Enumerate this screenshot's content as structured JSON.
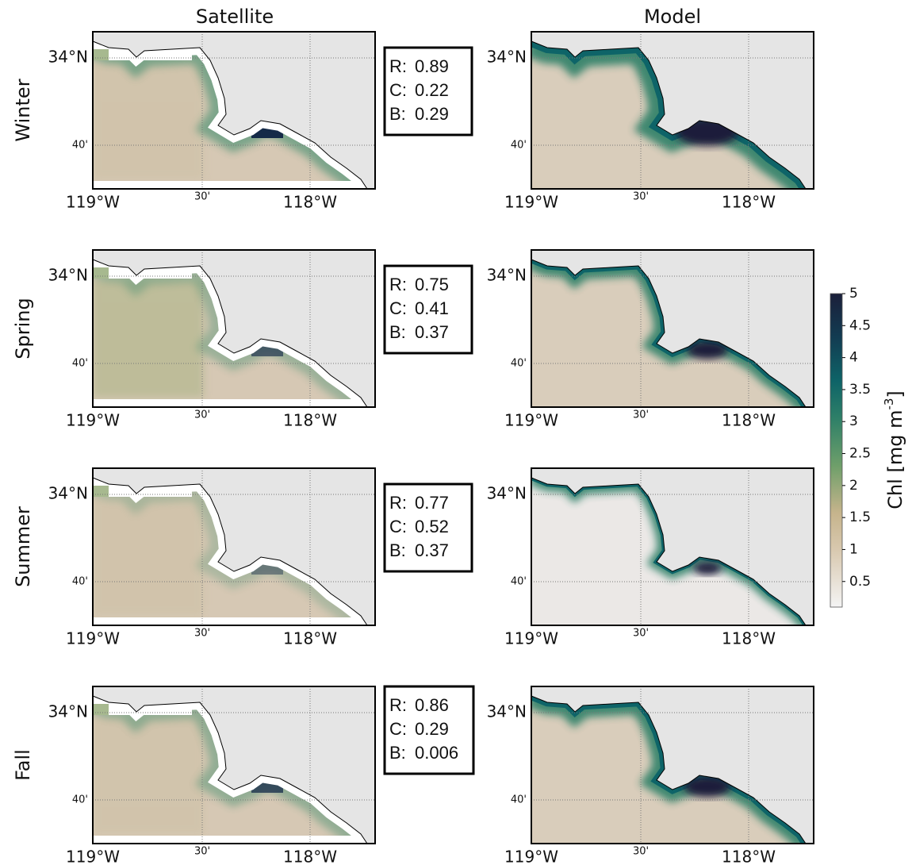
{
  "columns": [
    "Satellite",
    "Model"
  ],
  "rows": [
    {
      "label": "Winter",
      "stats": [
        {
          "name": "R:",
          "value": "0.89"
        },
        {
          "name": "C:",
          "value": "0.22"
        },
        {
          "name": "B:",
          "value": "0.29"
        }
      ]
    },
    {
      "label": "Spring",
      "stats": [
        {
          "name": "R:",
          "value": "0.75"
        },
        {
          "name": "C:",
          "value": "0.41"
        },
        {
          "name": "B:",
          "value": "0.37"
        }
      ]
    },
    {
      "label": "Summer",
      "stats": [
        {
          "name": "R:",
          "value": "0.77"
        },
        {
          "name": "C:",
          "value": "0.52"
        },
        {
          "name": "B:",
          "value": "0.37"
        }
      ]
    },
    {
      "label": "Fall",
      "stats": [
        {
          "name": "R:",
          "value": "0.86"
        },
        {
          "name": "C:",
          "value": "0.29"
        },
        {
          "name": "B:",
          "value": "0.006"
        }
      ]
    }
  ],
  "map_axes": {
    "xticks": [
      "119°W",
      "30'",
      "118°W"
    ],
    "yticks": [
      "34°N",
      "40'"
    ]
  },
  "colorbar": {
    "label": "Chl [mg m",
    "label_sup": "-3",
    "label_end": "]",
    "lim": [
      0.1,
      5
    ],
    "ticks": [
      0.5,
      1,
      1.5,
      2,
      2.5,
      3,
      3.5,
      4,
      4.5,
      5
    ]
  }
}
